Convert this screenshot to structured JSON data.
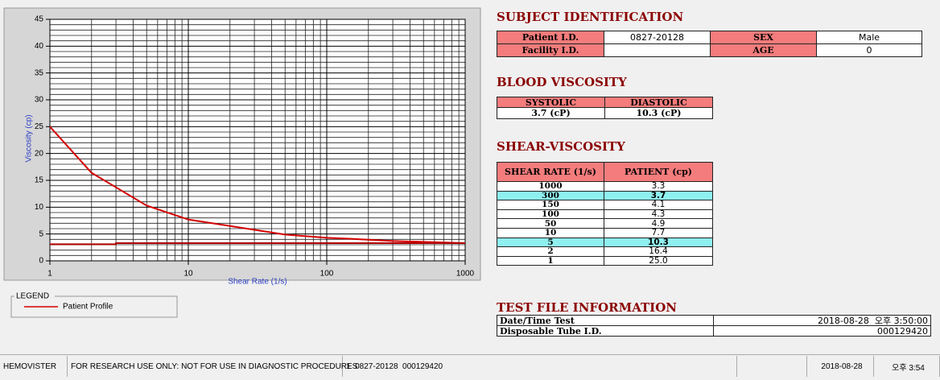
{
  "chart_data": {
    "type": "line",
    "x_label": "Shear Rate (1/s)",
    "y_label": "Viscosity (cp)",
    "xscale": "log",
    "xlim": [
      1,
      1000
    ],
    "xticks": [
      1,
      10,
      100,
      1000
    ],
    "xminorticks": [
      2,
      3,
      4,
      5,
      6,
      7,
      8,
      9,
      20,
      30,
      40,
      50,
      60,
      70,
      80,
      90,
      200,
      300,
      400,
      500,
      600,
      700,
      800,
      900
    ],
    "ylim": [
      0,
      45
    ],
    "yticks": [
      0,
      5,
      10,
      15,
      20,
      25,
      30,
      35,
      40,
      45
    ],
    "yminorticks": [
      1,
      2,
      3,
      4,
      6,
      7,
      8,
      9,
      11,
      12,
      13,
      14,
      16,
      17,
      18,
      19,
      21,
      22,
      23,
      24,
      26,
      27,
      28,
      29,
      31,
      32,
      33,
      34,
      36,
      37,
      38,
      39,
      41,
      42,
      43,
      44
    ],
    "grid": true,
    "legend_title": "LEGEND",
    "series": [
      {
        "name": "Patient Profile",
        "color": "#d40000",
        "x": [
          1,
          2,
          5,
          10,
          50,
          100,
          150,
          300,
          1000
        ],
        "values": [
          25.0,
          16.4,
          10.3,
          7.7,
          4.9,
          4.3,
          4.1,
          3.7,
          3.3
        ]
      },
      {
        "color": "#b00000",
        "x": [
          1,
          3,
          3,
          1000
        ],
        "values": [
          3.1,
          3.1,
          3.3,
          3.3
        ]
      }
    ]
  },
  "subject": {
    "title": "SUBJECT IDENTIFICATION",
    "rows": [
      [
        "Patient I.D.",
        "0827-20128",
        "SEX",
        "Male"
      ],
      [
        "Facility I.D.",
        null,
        "AGE",
        "0"
      ]
    ]
  },
  "blood": {
    "title": "BLOOD VISCOSITY",
    "headers": [
      "SYSTOLIC",
      "DIASTOLIC"
    ],
    "values": [
      "3.7 (cP)",
      "10.3 (cP)"
    ]
  },
  "shear": {
    "title": "SHEAR-VISCOSITY",
    "headers": [
      "SHEAR RATE (1/s)",
      "PATIENT (cp)"
    ],
    "rows": [
      [
        "1000",
        "3.3"
      ],
      [
        "300",
        "3.7"
      ],
      [
        "150",
        "4.1"
      ],
      [
        "100",
        "4.3"
      ],
      [
        "50",
        "4.9"
      ],
      [
        "10",
        "7.7"
      ],
      [
        "5",
        "10.3"
      ],
      [
        "2",
        "16.4"
      ],
      [
        "1",
        "25.0"
      ]
    ],
    "highlight_rows": [
      1,
      6
    ]
  },
  "testfile": {
    "title": "TEST FILE INFORMATION",
    "rows": [
      [
        "Date/Time Test",
        "2018-08-28  오후 3:50:00"
      ],
      [
        "Disposable Tube I.D.",
        "000129420"
      ]
    ]
  },
  "status": [
    "HEMOVISTER",
    "FOR RESEARCH USE ONLY: NOT FOR USE IN DIAGNOSTIC PROCEDURES",
    "1  0827-20128  000129420",
    "2018-08-28",
    "오후 3:54"
  ]
}
